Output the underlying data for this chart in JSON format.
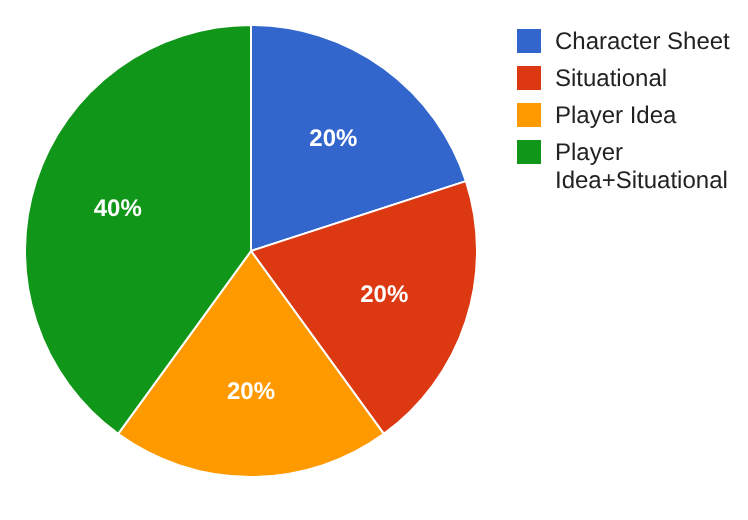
{
  "chart_data": {
    "type": "pie",
    "categories": [
      "Character Sheet",
      "Situational",
      "Player Idea",
      "Player Idea+Situational"
    ],
    "values": [
      20,
      20,
      20,
      40
    ],
    "colors": [
      "#3366cc",
      "#dc3912",
      "#ff9900",
      "#109618"
    ],
    "value_labels": [
      "20%",
      "20%",
      "20%",
      "40%"
    ],
    "legend": "right"
  }
}
